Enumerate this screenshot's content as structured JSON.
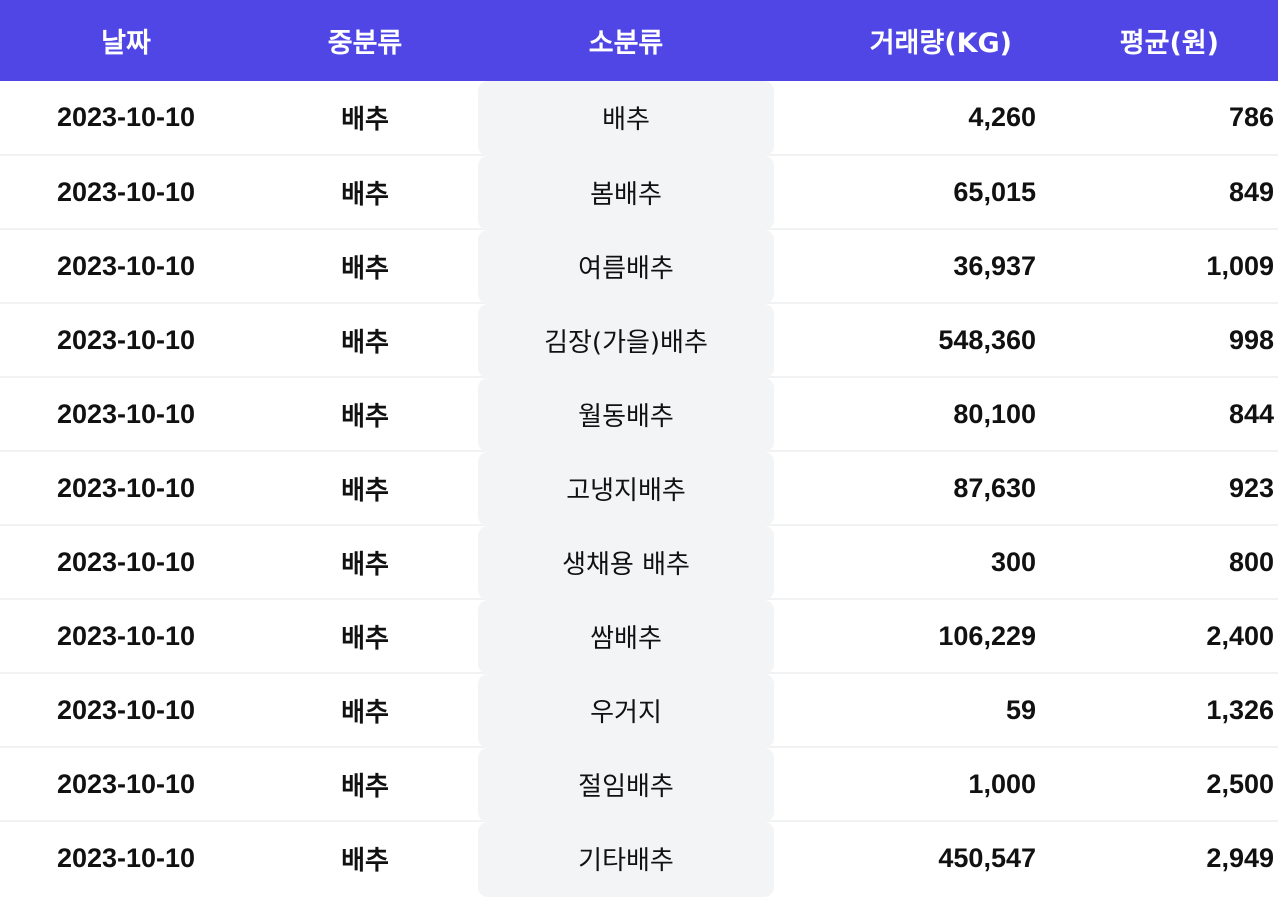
{
  "columns": {
    "date": "날짜",
    "mid_category": "중분류",
    "sub_category": "소분류",
    "volume": "거래량(KG)",
    "average_price": "평균(원)"
  },
  "rows": [
    {
      "date": "2023-10-10",
      "mid": "배추",
      "sub": "배추",
      "volume": "4,260",
      "avg": "786"
    },
    {
      "date": "2023-10-10",
      "mid": "배추",
      "sub": "봄배추",
      "volume": "65,015",
      "avg": "849"
    },
    {
      "date": "2023-10-10",
      "mid": "배추",
      "sub": "여름배추",
      "volume": "36,937",
      "avg": "1,009"
    },
    {
      "date": "2023-10-10",
      "mid": "배추",
      "sub": "김장(가을)배추",
      "volume": "548,360",
      "avg": "998"
    },
    {
      "date": "2023-10-10",
      "mid": "배추",
      "sub": "월동배추",
      "volume": "80,100",
      "avg": "844"
    },
    {
      "date": "2023-10-10",
      "mid": "배추",
      "sub": "고냉지배추",
      "volume": "87,630",
      "avg": "923"
    },
    {
      "date": "2023-10-10",
      "mid": "배추",
      "sub": "생채용 배추",
      "volume": "300",
      "avg": "800"
    },
    {
      "date": "2023-10-10",
      "mid": "배추",
      "sub": "쌈배추",
      "volume": "106,229",
      "avg": "2,400"
    },
    {
      "date": "2023-10-10",
      "mid": "배추",
      "sub": "우거지",
      "volume": "59",
      "avg": "1,326"
    },
    {
      "date": "2023-10-10",
      "mid": "배추",
      "sub": "절임배추",
      "volume": "1,000",
      "avg": "2,500"
    },
    {
      "date": "2023-10-10",
      "mid": "배추",
      "sub": "기타배추",
      "volume": "450,547",
      "avg": "2,949"
    }
  ],
  "colors": {
    "header_bg": "#4f46e5",
    "header_text": "#ffffff",
    "chip_bg": "#f3f4f6",
    "row_divider": "#f1f2f4"
  }
}
